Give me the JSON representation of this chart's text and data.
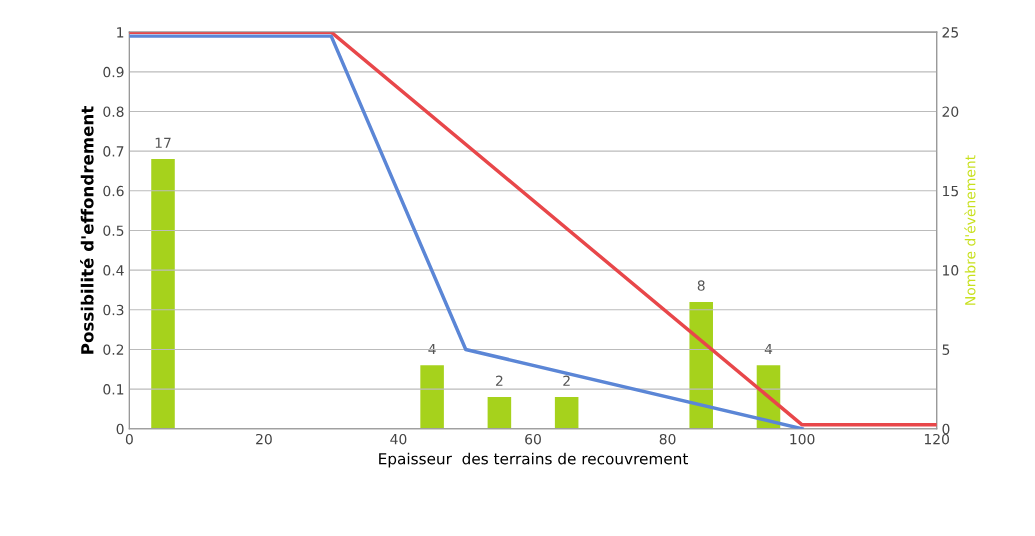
{
  "chart_data": {
    "type": "line",
    "xlabel": "Epaisseur  des terrains de recouvrement",
    "ylabel": "Possibilité d'effondrement",
    "y2label": "Nombre d'évènement",
    "xlim": [
      0,
      120
    ],
    "xticks": [
      0,
      20,
      40,
      60,
      80,
      100,
      120
    ],
    "ylim": [
      0,
      1
    ],
    "yticks": [
      0,
      0.1,
      0.2,
      0.3,
      0.4,
      0.5,
      0.6,
      0.7,
      0.8,
      0.9,
      1
    ],
    "y2lim": [
      0,
      25
    ],
    "y2ticks": [
      0,
      5,
      10,
      15,
      20,
      25
    ],
    "grid": "y",
    "series": [
      {
        "type": "bar",
        "axis": "y2",
        "color": "#a6d21c",
        "x": [
          5,
          45,
          55,
          65,
          85,
          95
        ],
        "values": [
          17,
          4,
          2,
          2,
          8,
          4
        ],
        "data_labels": true
      },
      {
        "color": "#e8474a",
        "x": [
          0,
          30,
          100,
          120
        ],
        "values": [
          1,
          1,
          0.01,
          0.01
        ]
      },
      {
        "color": "#5b86d6",
        "x": [
          0,
          30,
          50,
          100
        ],
        "values": [
          0.99,
          0.99,
          0.2,
          0
        ]
      }
    ]
  }
}
